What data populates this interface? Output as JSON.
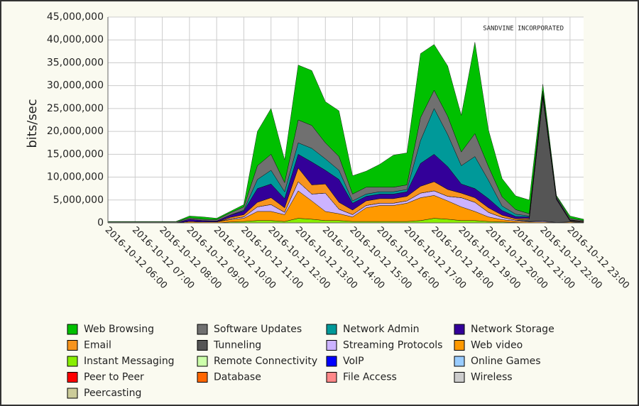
{
  "chart_data": {
    "type": "stacked_area",
    "y_label": "bits/sec",
    "annotation": "SANDVINE INCORPORATED",
    "x": [
      "2016-10-12 06:00",
      "2016-10-12 06:30",
      "2016-10-12 07:00",
      "2016-10-12 07:30",
      "2016-10-12 08:00",
      "2016-10-12 08:30",
      "2016-10-12 09:00",
      "2016-10-12 09:30",
      "2016-10-12 10:00",
      "2016-10-12 10:30",
      "2016-10-12 11:00",
      "2016-10-12 11:30",
      "2016-10-12 12:00",
      "2016-10-12 12:30",
      "2016-10-12 13:00",
      "2016-10-12 13:30",
      "2016-10-12 14:00",
      "2016-10-12 14:30",
      "2016-10-12 15:00",
      "2016-10-12 15:30",
      "2016-10-12 16:00",
      "2016-10-12 16:30",
      "2016-10-12 17:00",
      "2016-10-12 17:30",
      "2016-10-12 18:00",
      "2016-10-12 18:30",
      "2016-10-12 19:00",
      "2016-10-12 19:30",
      "2016-10-12 20:00",
      "2016-10-12 20:30",
      "2016-10-12 21:00",
      "2016-10-12 21:30",
      "2016-10-12 22:00",
      "2016-10-12 22:30",
      "2016-10-12 23:00",
      "2016-10-12 23:30"
    ],
    "xlim": [
      "2016-10-12 06:00",
      "2016-10-12 23:30"
    ],
    "xticks": [
      "2016-10-12 06:00",
      "2016-10-12 07:00",
      "2016-10-12 08:00",
      "2016-10-12 09:00",
      "2016-10-12 10:00",
      "2016-10-12 11:00",
      "2016-10-12 12:00",
      "2016-10-12 13:00",
      "2016-10-12 14:00",
      "2016-10-12 15:00",
      "2016-10-12 16:00",
      "2016-10-12 17:00",
      "2016-10-12 18:00",
      "2016-10-12 19:00",
      "2016-10-12 20:00",
      "2016-10-12 21:00",
      "2016-10-12 22:00",
      "2016-10-12 23:00"
    ],
    "ylim": [
      0,
      45000000
    ],
    "yticks": [
      0,
      {
        "value": 5000000,
        "label": "5,000,000"
      },
      {
        "value": 10000000,
        "label": "10,000,000"
      },
      {
        "value": 15000000,
        "label": "15,000,000"
      },
      {
        "value": 20000000,
        "label": "20,000,000"
      },
      {
        "value": 25000000,
        "label": "25,000,000"
      },
      {
        "value": 30000000,
        "label": "30,000,000"
      },
      {
        "value": 35000000,
        "label": "35,000,000"
      },
      {
        "value": 40000000,
        "label": "40,000,000"
      },
      {
        "value": 45000000,
        "label": "45,000,000"
      }
    ],
    "grid": true,
    "series": [
      {
        "name": "Web Browsing",
        "color": "#00c000",
        "values": [
          100000,
          100000,
          100000,
          100000,
          100000,
          100000,
          400000,
          500000,
          300000,
          300000,
          500000,
          7500000,
          10000000,
          5000000,
          12000000,
          12000000,
          9000000,
          10000000,
          4000000,
          3500000,
          5000000,
          7000000,
          7000000,
          14000000,
          10000000,
          11000000,
          8000000,
          20000000,
          8000000,
          4000000,
          3000000,
          3000000,
          1500000,
          200000,
          500000,
          300000
        ]
      },
      {
        "name": "Software Updates",
        "color": "#707070",
        "values": [
          200000,
          200000,
          200000,
          200000,
          200000,
          200000,
          300000,
          300000,
          300000,
          500000,
          700000,
          3000000,
          3500000,
          2000000,
          5000000,
          5000000,
          3500000,
          3000000,
          1500000,
          1500000,
          1000000,
          1000000,
          1000000,
          5000000,
          4000000,
          4000000,
          3000000,
          5000000,
          3000000,
          2000000,
          1000000,
          500000,
          500000,
          300000,
          300000,
          200000
        ]
      },
      {
        "name": "Network Admin",
        "color": "#009999",
        "values": [
          0,
          0,
          0,
          0,
          0,
          0,
          0,
          0,
          0,
          0,
          200000,
          2000000,
          3000000,
          1500000,
          2500000,
          3000000,
          2500000,
          2000000,
          500000,
          500000,
          500000,
          500000,
          500000,
          5000000,
          10000000,
          7000000,
          4000000,
          7000000,
          4000000,
          1000000,
          500000,
          200000,
          200000,
          100000,
          100000,
          0
        ]
      },
      {
        "name": "Network Storage",
        "color": "#330099",
        "values": [
          0,
          0,
          0,
          0,
          0,
          0,
          500000,
          300000,
          200000,
          500000,
          800000,
          3000000,
          3000000,
          2000000,
          3000000,
          5000000,
          3000000,
          5000000,
          1500000,
          1000000,
          1000000,
          1000000,
          1000000,
          5000000,
          6000000,
          5000000,
          2000000,
          2000000,
          2000000,
          1000000,
          500000,
          300000,
          500000,
          200000,
          100000,
          0
        ]
      },
      {
        "name": "Email",
        "color": "#f7941d",
        "values": [
          0,
          0,
          0,
          0,
          0,
          0,
          0,
          0,
          0,
          300000,
          500000,
          1000000,
          1500000,
          1000000,
          3000000,
          2000000,
          2000000,
          1500000,
          1000000,
          1000000,
          1000000,
          1000000,
          1000000,
          1500000,
          2000000,
          1500000,
          1000000,
          1000000,
          1000000,
          500000,
          300000,
          200000,
          200000,
          100000,
          100000,
          100000
        ]
      },
      {
        "name": "Tunneling",
        "color": "#555555",
        "values": [
          0,
          0,
          0,
          0,
          0,
          0,
          0,
          0,
          0,
          0,
          0,
          0,
          0,
          0,
          0,
          0,
          0,
          0,
          0,
          0,
          0,
          0,
          0,
          0,
          0,
          0,
          0,
          0,
          0,
          0,
          0,
          500000,
          27000000,
          5000000,
          200000,
          100000
        ]
      },
      {
        "name": "Streaming Protocols",
        "color": "#ccb3ff",
        "values": [
          0,
          0,
          0,
          0,
          0,
          0,
          0,
          0,
          0,
          200000,
          300000,
          1000000,
          1500000,
          500000,
          2000000,
          1500000,
          4000000,
          1000000,
          500000,
          500000,
          500000,
          500000,
          500000,
          1000000,
          1000000,
          1000000,
          2000000,
          2000000,
          1000000,
          500000,
          200000,
          100000,
          200000,
          0,
          0,
          0
        ]
      },
      {
        "name": "Web video",
        "color": "#ff9900",
        "values": [
          0,
          0,
          0,
          0,
          0,
          0,
          300000,
          200000,
          200000,
          500000,
          700000,
          2000000,
          2000000,
          1500000,
          6000000,
          4000000,
          2000000,
          1500000,
          1000000,
          3000000,
          3500000,
          3500000,
          4000000,
          5000000,
          5000000,
          4000000,
          3000000,
          2000000,
          1000000,
          500000,
          300000,
          200000,
          200000,
          100000,
          200000,
          100000
        ]
      },
      {
        "name": "Instant Messaging",
        "color": "#88ee00",
        "values": [
          0,
          0,
          0,
          0,
          0,
          0,
          0,
          0,
          0,
          200000,
          300000,
          500000,
          500000,
          300000,
          1000000,
          800000,
          500000,
          500000,
          300000,
          300000,
          300000,
          300000,
          300000,
          500000,
          1000000,
          800000,
          500000,
          500000,
          300000,
          200000,
          100000,
          0,
          0,
          0,
          0,
          0
        ]
      },
      {
        "name": "Remote Connectivity",
        "color": "#ccffaa",
        "values": [
          0,
          0,
          0,
          0,
          0,
          0,
          0,
          0,
          0,
          0,
          0,
          0,
          0,
          0,
          0,
          0,
          0,
          0,
          0,
          0,
          0,
          0,
          0,
          0,
          0,
          0,
          0,
          0,
          0,
          0,
          0,
          0,
          0,
          0,
          0,
          0
        ]
      },
      {
        "name": "VoIP",
        "color": "#0000ff",
        "values": [
          0,
          0,
          0,
          0,
          0,
          0,
          0,
          0,
          0,
          0,
          0,
          0,
          0,
          0,
          0,
          0,
          0,
          0,
          0,
          0,
          0,
          0,
          0,
          0,
          0,
          0,
          0,
          0,
          0,
          0,
          0,
          0,
          0,
          0,
          0,
          0
        ]
      },
      {
        "name": "Online Games",
        "color": "#99ccff",
        "values": [
          0,
          0,
          0,
          0,
          0,
          0,
          0,
          0,
          0,
          0,
          0,
          0,
          0,
          0,
          0,
          0,
          0,
          0,
          0,
          0,
          0,
          0,
          0,
          0,
          0,
          0,
          0,
          0,
          0,
          0,
          0,
          0,
          0,
          0,
          0,
          0
        ]
      },
      {
        "name": "Peer to Peer",
        "color": "#ff0000",
        "values": [
          0,
          0,
          0,
          0,
          0,
          0,
          0,
          0,
          0,
          0,
          0,
          0,
          0,
          0,
          0,
          0,
          0,
          0,
          0,
          0,
          0,
          0,
          0,
          0,
          0,
          0,
          0,
          0,
          0,
          0,
          0,
          0,
          0,
          0,
          0,
          0
        ]
      },
      {
        "name": "Database",
        "color": "#ff6600",
        "values": [
          0,
          0,
          0,
          0,
          0,
          0,
          0,
          0,
          0,
          0,
          0,
          0,
          0,
          0,
          0,
          0,
          0,
          0,
          0,
          0,
          0,
          0,
          0,
          0,
          0,
          0,
          0,
          0,
          0,
          0,
          0,
          0,
          0,
          0,
          0,
          0
        ]
      },
      {
        "name": "File Access",
        "color": "#ff8888",
        "values": [
          0,
          0,
          0,
          0,
          0,
          0,
          0,
          0,
          0,
          0,
          0,
          0,
          0,
          0,
          0,
          0,
          0,
          0,
          0,
          0,
          0,
          0,
          0,
          0,
          0,
          0,
          0,
          0,
          0,
          0,
          0,
          0,
          0,
          0,
          0,
          0
        ]
      },
      {
        "name": "Wireless",
        "color": "#cccccc",
        "values": [
          0,
          0,
          0,
          0,
          0,
          0,
          0,
          0,
          0,
          0,
          0,
          0,
          0,
          0,
          0,
          0,
          0,
          0,
          0,
          0,
          0,
          0,
          0,
          0,
          0,
          0,
          0,
          0,
          0,
          0,
          0,
          0,
          0,
          0,
          0,
          0
        ]
      },
      {
        "name": "Peercasting",
        "color": "#cccc99",
        "values": [
          0,
          0,
          0,
          0,
          0,
          0,
          0,
          0,
          0,
          0,
          0,
          0,
          0,
          0,
          0,
          0,
          0,
          0,
          0,
          0,
          0,
          0,
          0,
          0,
          0,
          0,
          0,
          0,
          0,
          0,
          0,
          0,
          0,
          0,
          0,
          0
        ]
      }
    ]
  }
}
